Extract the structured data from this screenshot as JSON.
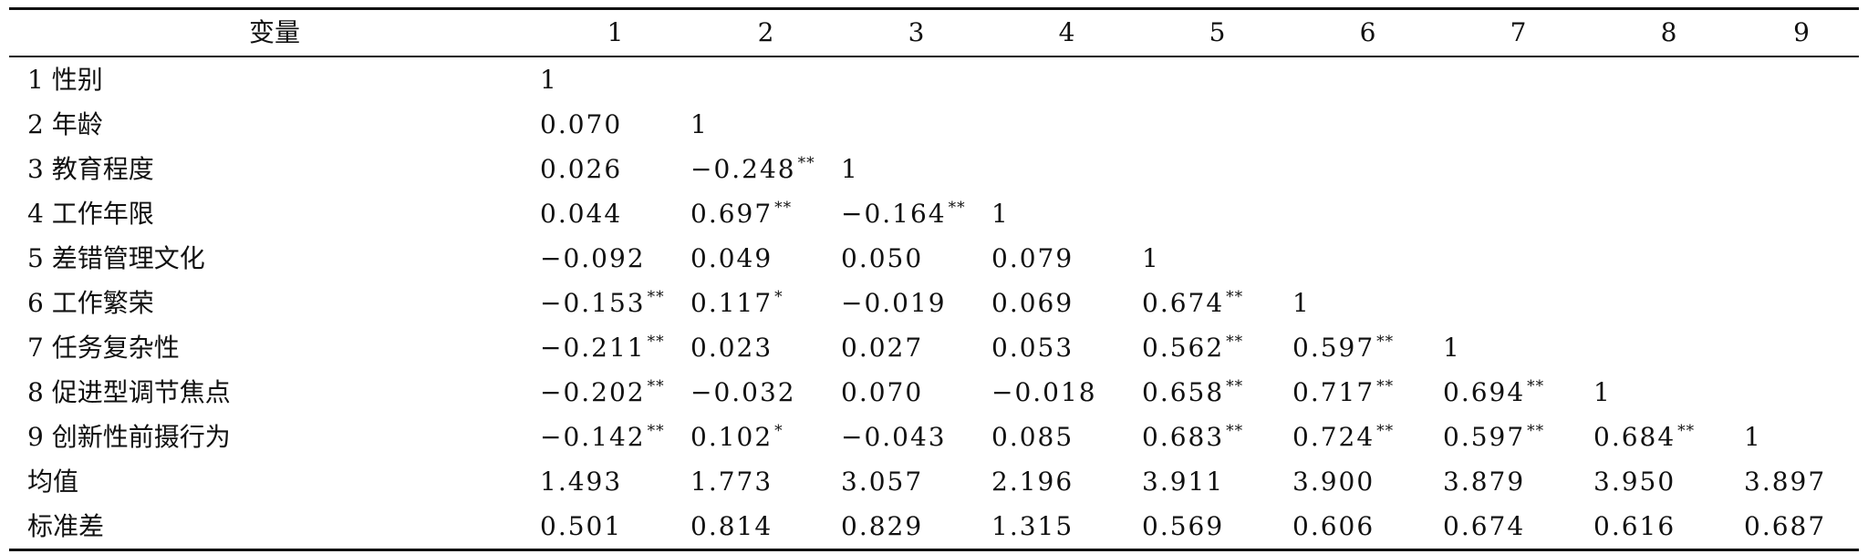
{
  "table": {
    "header": [
      "变量",
      "1",
      "2",
      "3",
      "4",
      "5",
      "6",
      "7",
      "8",
      "9"
    ],
    "rows": [
      {
        "label": "1 性别",
        "cells": [
          {
            "v": "1",
            "s": ""
          }
        ]
      },
      {
        "label": "2 年龄",
        "cells": [
          {
            "v": "0.070",
            "s": ""
          },
          {
            "v": "1",
            "s": ""
          }
        ]
      },
      {
        "label": "3 教育程度",
        "cells": [
          {
            "v": "0.026",
            "s": ""
          },
          {
            "v": "−0.248",
            "s": "**"
          },
          {
            "v": "1",
            "s": ""
          }
        ]
      },
      {
        "label": "4 工作年限",
        "cells": [
          {
            "v": "0.044",
            "s": ""
          },
          {
            "v": "0.697",
            "s": "**"
          },
          {
            "v": "−0.164",
            "s": "**"
          },
          {
            "v": "1",
            "s": ""
          }
        ]
      },
      {
        "label": "5 差错管理文化",
        "cells": [
          {
            "v": "−0.092",
            "s": ""
          },
          {
            "v": "0.049",
            "s": ""
          },
          {
            "v": "0.050",
            "s": ""
          },
          {
            "v": "0.079",
            "s": ""
          },
          {
            "v": "1",
            "s": ""
          }
        ]
      },
      {
        "label": "6 工作繁荣",
        "cells": [
          {
            "v": "−0.153",
            "s": "**"
          },
          {
            "v": "0.117",
            "s": "*"
          },
          {
            "v": "−0.019",
            "s": ""
          },
          {
            "v": "0.069",
            "s": ""
          },
          {
            "v": "0.674",
            "s": "**"
          },
          {
            "v": "1",
            "s": ""
          }
        ]
      },
      {
        "label": "7 任务复杂性",
        "cells": [
          {
            "v": "−0.211",
            "s": "**"
          },
          {
            "v": "0.023",
            "s": ""
          },
          {
            "v": "0.027",
            "s": ""
          },
          {
            "v": "0.053",
            "s": ""
          },
          {
            "v": "0.562",
            "s": "**"
          },
          {
            "v": "0.597",
            "s": "**"
          },
          {
            "v": "1",
            "s": ""
          }
        ]
      },
      {
        "label": "8 促进型调节焦点",
        "cells": [
          {
            "v": "−0.202",
            "s": "**"
          },
          {
            "v": "−0.032",
            "s": ""
          },
          {
            "v": "0.070",
            "s": ""
          },
          {
            "v": "−0.018",
            "s": ""
          },
          {
            "v": "0.658",
            "s": "**"
          },
          {
            "v": "0.717",
            "s": "**"
          },
          {
            "v": "0.694",
            "s": "**"
          },
          {
            "v": "1",
            "s": ""
          }
        ]
      },
      {
        "label": "9 创新性前摄行为",
        "cells": [
          {
            "v": "−0.142",
            "s": "**"
          },
          {
            "v": "0.102",
            "s": "*"
          },
          {
            "v": "−0.043",
            "s": ""
          },
          {
            "v": "0.085",
            "s": ""
          },
          {
            "v": "0.683",
            "s": "**"
          },
          {
            "v": "0.724",
            "s": "**"
          },
          {
            "v": "0.597",
            "s": "**"
          },
          {
            "v": "0.684",
            "s": "**"
          },
          {
            "v": "1",
            "s": ""
          }
        ]
      },
      {
        "label": "均值",
        "cells": [
          {
            "v": "1.493",
            "s": ""
          },
          {
            "v": "1.773",
            "s": ""
          },
          {
            "v": "3.057",
            "s": ""
          },
          {
            "v": "2.196",
            "s": ""
          },
          {
            "v": "3.911",
            "s": ""
          },
          {
            "v": "3.900",
            "s": ""
          },
          {
            "v": "3.879",
            "s": ""
          },
          {
            "v": "3.950",
            "s": ""
          },
          {
            "v": "3.897",
            "s": ""
          }
        ]
      },
      {
        "label": "标准差",
        "cells": [
          {
            "v": "0.501",
            "s": ""
          },
          {
            "v": "0.814",
            "s": ""
          },
          {
            "v": "0.829",
            "s": ""
          },
          {
            "v": "1.315",
            "s": ""
          },
          {
            "v": "0.569",
            "s": ""
          },
          {
            "v": "0.606",
            "s": ""
          },
          {
            "v": "0.674",
            "s": ""
          },
          {
            "v": "0.616",
            "s": ""
          },
          {
            "v": "0.687",
            "s": ""
          }
        ]
      }
    ]
  }
}
